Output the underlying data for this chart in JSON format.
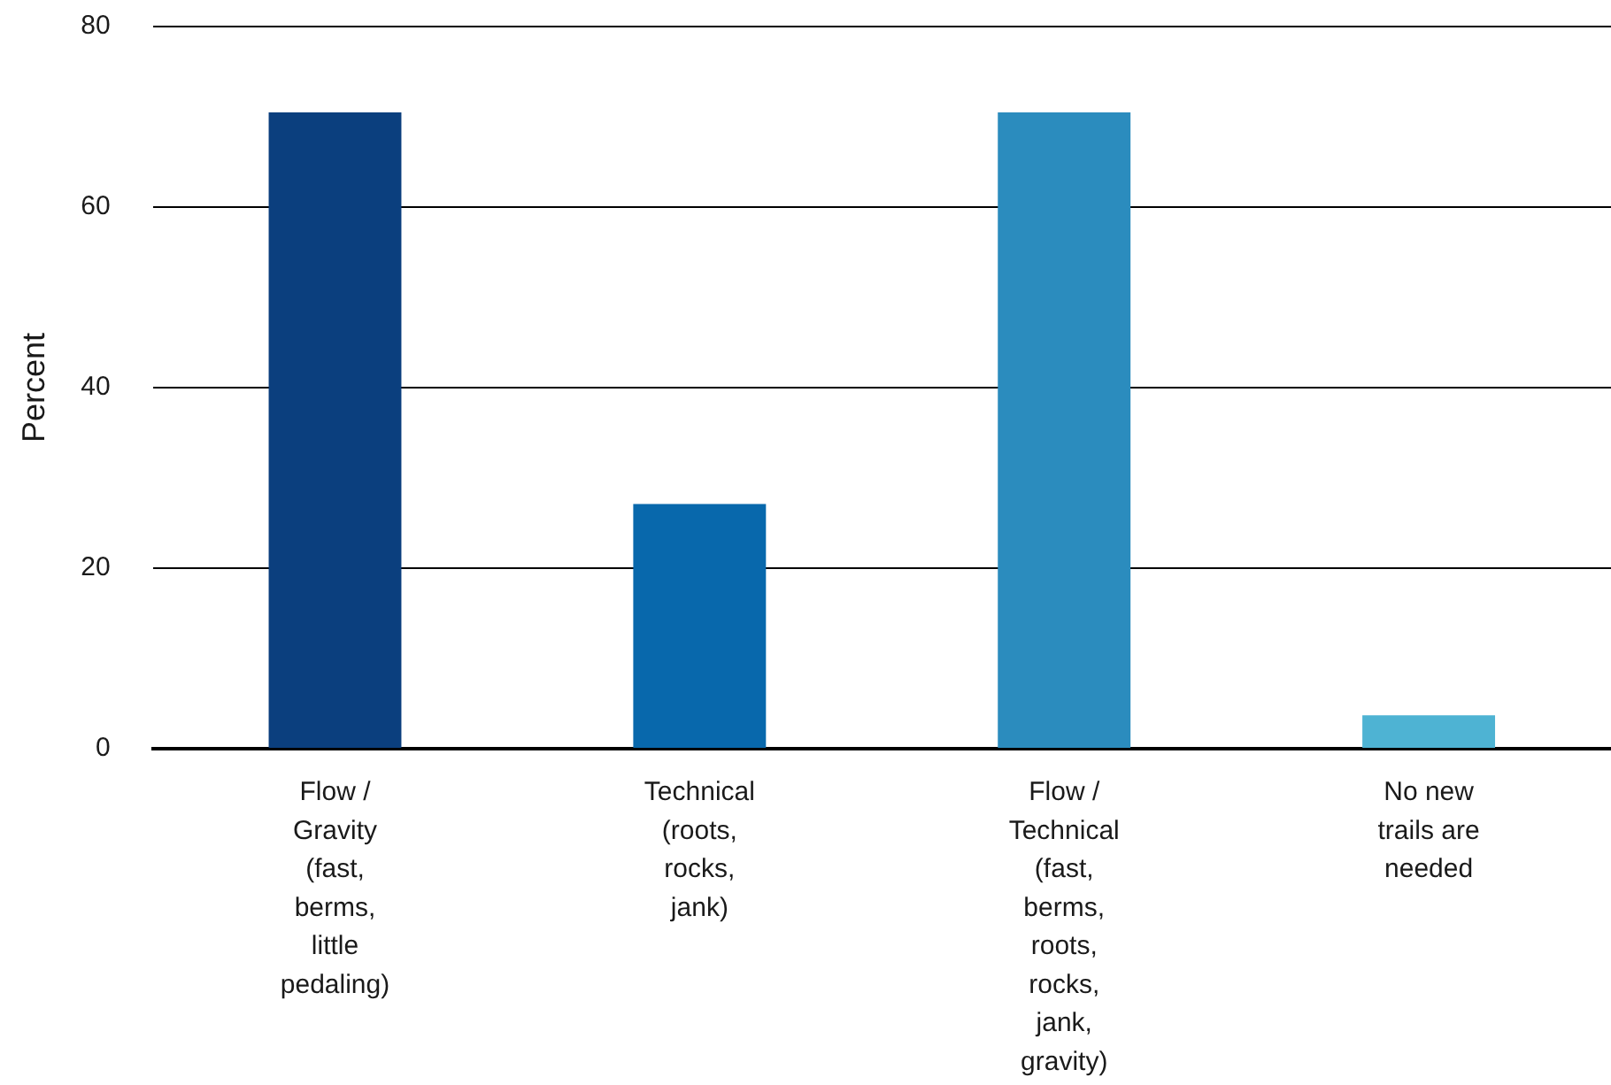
{
  "chart_data": {
    "type": "bar",
    "ylabel": "Percent",
    "categories": [
      "Flow / Gravity (fast, berms, little pedaling)",
      "Technical (roots, rocks, jank)",
      "Flow / Technical (fast, berms, roots, rocks, jank, gravity)",
      "No new trails are needed"
    ],
    "values": [
      70.5,
      27.1,
      70.5,
      3.7
    ],
    "colors": [
      "#0b3f7e",
      "#0868ac",
      "#2b8cbe",
      "#4eb3d3"
    ],
    "ylim": [
      0,
      80
    ],
    "yticks": [
      0,
      20,
      40,
      60,
      80
    ],
    "grid": "y"
  }
}
